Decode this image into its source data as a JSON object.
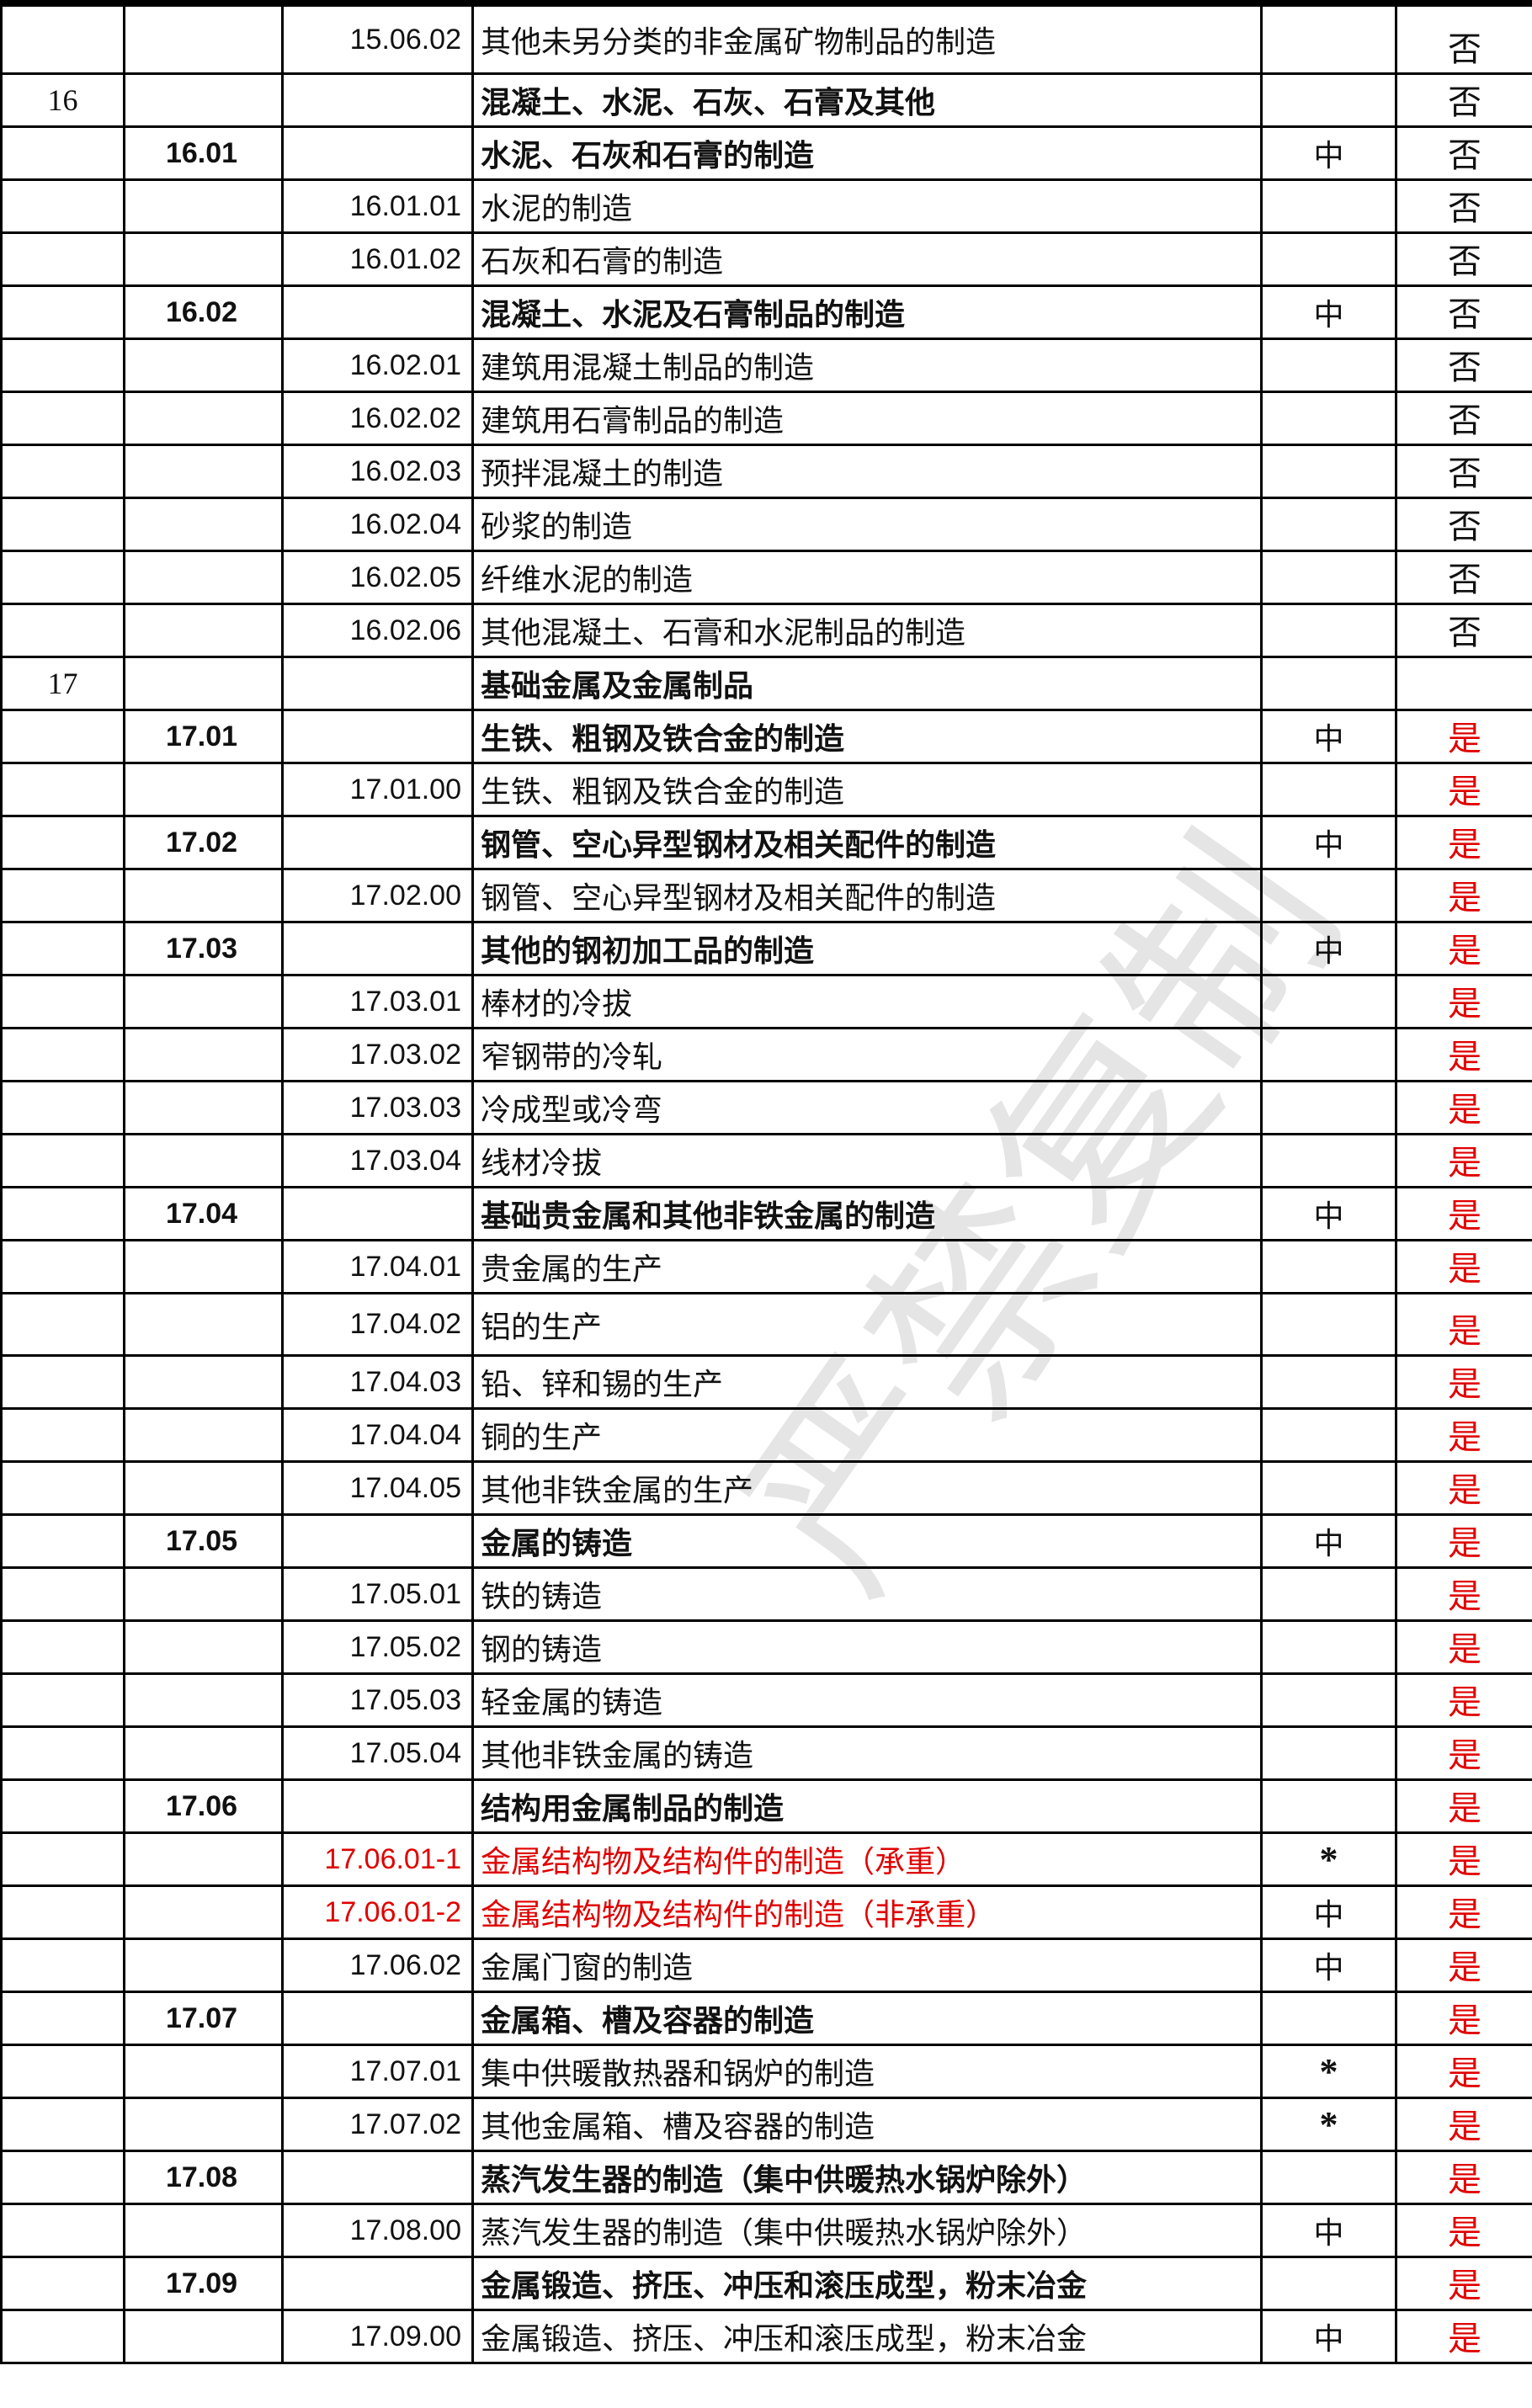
{
  "colors": {
    "red": "#e00000",
    "text": "#111111"
  },
  "watermark": "严禁复制",
  "rows": [
    {
      "l1": "",
      "l2": "",
      "l3": "15.06.02",
      "name": "其他未另分类的非金属矿物制品的制造",
      "risk": "",
      "flag": "否",
      "h": 82
    },
    {
      "l1": "16",
      "l2": "",
      "l3": "",
      "name": "混凝土、水泥、石灰、石膏及其他",
      "risk": "",
      "flag": "否",
      "bold": true
    },
    {
      "l1": "",
      "l2": "16.01",
      "l3": "",
      "name": "水泥、石灰和石膏的制造",
      "risk": "中",
      "flag": "否",
      "bold": true
    },
    {
      "l1": "",
      "l2": "",
      "l3": "16.01.01",
      "name": "水泥的制造",
      "risk": "",
      "flag": "否"
    },
    {
      "l1": "",
      "l2": "",
      "l3": "16.01.02",
      "name": "石灰和石膏的制造",
      "risk": "",
      "flag": "否"
    },
    {
      "l1": "",
      "l2": "16.02",
      "l3": "",
      "name": "混凝土、水泥及石膏制品的制造",
      "risk": "中",
      "flag": "否",
      "bold": true
    },
    {
      "l1": "",
      "l2": "",
      "l3": "16.02.01",
      "name": "建筑用混凝土制品的制造",
      "risk": "",
      "flag": "否"
    },
    {
      "l1": "",
      "l2": "",
      "l3": "16.02.02",
      "name": "建筑用石膏制品的制造",
      "risk": "",
      "flag": "否"
    },
    {
      "l1": "",
      "l2": "",
      "l3": "16.02.03",
      "name": "预拌混凝土的制造",
      "risk": "",
      "flag": "否"
    },
    {
      "l1": "",
      "l2": "",
      "l3": "16.02.04",
      "name": "砂浆的制造",
      "risk": "",
      "flag": "否"
    },
    {
      "l1": "",
      "l2": "",
      "l3": "16.02.05",
      "name": "纤维水泥的制造",
      "risk": "",
      "flag": "否"
    },
    {
      "l1": "",
      "l2": "",
      "l3": "16.02.06",
      "name": "其他混凝土、石膏和水泥制品的制造",
      "risk": "",
      "flag": "否"
    },
    {
      "l1": "17",
      "l2": "",
      "l3": "",
      "name": "基础金属及金属制品",
      "risk": "",
      "flag": "",
      "bold": true
    },
    {
      "l1": "",
      "l2": "17.01",
      "l3": "",
      "name": "生铁、粗钢及铁合金的制造",
      "risk": "中",
      "flag": "是",
      "bold": true
    },
    {
      "l1": "",
      "l2": "",
      "l3": "17.01.00",
      "name": "生铁、粗钢及铁合金的制造",
      "risk": "",
      "flag": "是"
    },
    {
      "l1": "",
      "l2": "17.02",
      "l3": "",
      "name": "钢管、空心异型钢材及相关配件的制造",
      "risk": "中",
      "flag": "是",
      "bold": true
    },
    {
      "l1": "",
      "l2": "",
      "l3": "17.02.00",
      "name": "钢管、空心异型钢材及相关配件的制造",
      "risk": "",
      "flag": "是"
    },
    {
      "l1": "",
      "l2": "17.03",
      "l3": "",
      "name": "其他的钢初加工品的制造",
      "risk": "中",
      "flag": "是",
      "bold": true
    },
    {
      "l1": "",
      "l2": "",
      "l3": "17.03.01",
      "name": "棒材的冷拔",
      "risk": "",
      "flag": "是"
    },
    {
      "l1": "",
      "l2": "",
      "l3": "17.03.02",
      "name": "窄钢带的冷轧",
      "risk": "",
      "flag": "是"
    },
    {
      "l1": "",
      "l2": "",
      "l3": "17.03.03",
      "name": "冷成型或冷弯",
      "risk": "",
      "flag": "是"
    },
    {
      "l1": "",
      "l2": "",
      "l3": "17.03.04",
      "name": "线材冷拔",
      "risk": "",
      "flag": "是"
    },
    {
      "l1": "",
      "l2": "17.04",
      "l3": "",
      "name": "基础贵金属和其他非铁金属的制造",
      "risk": "中",
      "flag": "是",
      "bold": true
    },
    {
      "l1": "",
      "l2": "",
      "l3": "17.04.01",
      "name": "贵金属的生产",
      "risk": "",
      "flag": "是"
    },
    {
      "l1": "",
      "l2": "",
      "l3": "17.04.02",
      "name": "铝的生产",
      "risk": "",
      "flag": "是",
      "h": 74
    },
    {
      "l1": "",
      "l2": "",
      "l3": "17.04.03",
      "name": "铅、锌和锡的生产",
      "risk": "",
      "flag": "是"
    },
    {
      "l1": "",
      "l2": "",
      "l3": "17.04.04",
      "name": "铜的生产",
      "risk": "",
      "flag": "是"
    },
    {
      "l1": "",
      "l2": "",
      "l3": "17.04.05",
      "name": "其他非铁金属的生产",
      "risk": "",
      "flag": "是"
    },
    {
      "l1": "",
      "l2": "17.05",
      "l3": "",
      "name": "金属的铸造",
      "risk": "中",
      "flag": "是",
      "bold": true
    },
    {
      "l1": "",
      "l2": "",
      "l3": "17.05.01",
      "name": "铁的铸造",
      "risk": "",
      "flag": "是"
    },
    {
      "l1": "",
      "l2": "",
      "l3": "17.05.02",
      "name": "钢的铸造",
      "risk": "",
      "flag": "是"
    },
    {
      "l1": "",
      "l2": "",
      "l3": "17.05.03",
      "name": "轻金属的铸造",
      "risk": "",
      "flag": "是"
    },
    {
      "l1": "",
      "l2": "",
      "l3": "17.05.04",
      "name": "其他非铁金属的铸造",
      "risk": "",
      "flag": "是"
    },
    {
      "l1": "",
      "l2": "17.06",
      "l3": "",
      "name": "结构用金属制品的制造",
      "risk": "",
      "flag": "是",
      "bold": true
    },
    {
      "l1": "",
      "l2": "",
      "l3": "17.06.01-1",
      "name": "金属结构物及结构件的制造（承重）",
      "risk": "*",
      "flag": "是",
      "red": true
    },
    {
      "l1": "",
      "l2": "",
      "l3": "17.06.01-2",
      "name": "金属结构物及结构件的制造（非承重）",
      "risk": "中",
      "flag": "是",
      "red": true
    },
    {
      "l1": "",
      "l2": "",
      "l3": "17.06.02",
      "name": "金属门窗的制造",
      "risk": "中",
      "flag": "是"
    },
    {
      "l1": "",
      "l2": "17.07",
      "l3": "",
      "name": "金属箱、槽及容器的制造",
      "risk": "",
      "flag": "是",
      "bold": true
    },
    {
      "l1": "",
      "l2": "",
      "l3": "17.07.01",
      "name": "集中供暖散热器和锅炉的制造",
      "risk": "*",
      "flag": "是"
    },
    {
      "l1": "",
      "l2": "",
      "l3": "17.07.02",
      "name": "其他金属箱、槽及容器的制造",
      "risk": "*",
      "flag": "是"
    },
    {
      "l1": "",
      "l2": "17.08",
      "l3": "",
      "name": "蒸汽发生器的制造（集中供暖热水锅炉除外）",
      "risk": "",
      "flag": "是",
      "bold": true
    },
    {
      "l1": "",
      "l2": "",
      "l3": "17.08.00",
      "name": "蒸汽发生器的制造（集中供暖热水锅炉除外）",
      "risk": "中",
      "flag": "是"
    },
    {
      "l1": "",
      "l2": "17.09",
      "l3": "",
      "name": "金属锻造、挤压、冲压和滚压成型，粉末冶金",
      "risk": "",
      "flag": "是",
      "bold": true
    },
    {
      "l1": "",
      "l2": "",
      "l3": "17.09.00",
      "name": "金属锻造、挤压、冲压和滚压成型，粉末冶金",
      "risk": "中",
      "flag": "是"
    }
  ]
}
